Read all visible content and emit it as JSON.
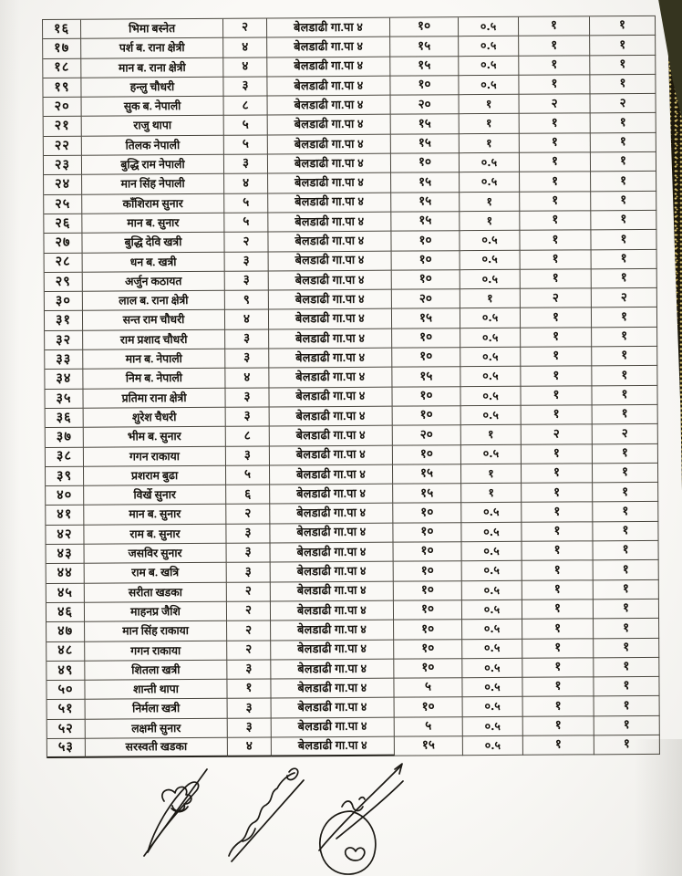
{
  "document": {
    "language": "Nepali (Devanagari)",
    "kind_hint": "scanned table page"
  },
  "table": {
    "rows": [
      [
        "१६",
        "भिमा बस्नेत",
        "२",
        "बेलडाढी गा.पा ४",
        "१०",
        "०.५",
        "१",
        "१"
      ],
      [
        "१७",
        "पर्श ब. राना क्षेत्री",
        "४",
        "बेलडाढी गा.पा ४",
        "१५",
        "०.५",
        "१",
        "१"
      ],
      [
        "१८",
        "मान ब. राना क्षेत्री",
        "४",
        "बेलडाढी गा.पा ४",
        "१५",
        "०.५",
        "१",
        "१"
      ],
      [
        "१९",
        "हन्लु चौधरी",
        "३",
        "बेलडाढी गा.पा ४",
        "१०",
        "०.५",
        "१",
        "१"
      ],
      [
        "२०",
        "सुक ब. नेपाली",
        "८",
        "बेलडाढी गा.पा ४",
        "२०",
        "१",
        "२",
        "२"
      ],
      [
        "२१",
        "राजु थापा",
        "५",
        "बेलडाढी गा.पा ४",
        "१५",
        "१",
        "१",
        "१"
      ],
      [
        "२२",
        "तिलक नेपाली",
        "५",
        "बेलडाढी गा.पा ४",
        "१५",
        "१",
        "१",
        "१"
      ],
      [
        "२३",
        "बुद्धि राम नेपाली",
        "३",
        "बेलडाढी गा.पा ४",
        "१०",
        "०.५",
        "१",
        "१"
      ],
      [
        "२४",
        "मान सिंह नेपाली",
        "४",
        "बेलडाढी गा.पा ४",
        "१५",
        "०.५",
        "१",
        "१"
      ],
      [
        "२५",
        "काँशिराम सुनार",
        "५",
        "बेलडाढी गा.पा ४",
        "१५",
        "१",
        "१",
        "१"
      ],
      [
        "२६",
        "मान ब. सुनार",
        "५",
        "बेलडाढी गा.पा ४",
        "१५",
        "१",
        "१",
        "१"
      ],
      [
        "२७",
        "बुद्धि देवि खत्री",
        "२",
        "बेलडाढी गा.पा ४",
        "१०",
        "०.५",
        "१",
        "१"
      ],
      [
        "२८",
        "धन ब. खत्री",
        "३",
        "बेलडाढी गा.पा ४",
        "१०",
        "०.५",
        "१",
        "१"
      ],
      [
        "२९",
        "अर्जुन कठायत",
        "३",
        "बेलडाढी गा.पा ४",
        "१०",
        "०.५",
        "१",
        "१"
      ],
      [
        "३०",
        "लाल ब. राना क्षेत्री",
        "९",
        "बेलडाढी गा.पा ४",
        "२०",
        "१",
        "२",
        "२"
      ],
      [
        "३१",
        "सन्त राम चौधरी",
        "४",
        "बेलडाढी गा.पा ४",
        "१५",
        "०.५",
        "१",
        "१"
      ],
      [
        "३२",
        "राम प्रशाद चौधरी",
        "३",
        "बेलडाढी गा.पा ४",
        "१०",
        "०.५",
        "१",
        "१"
      ],
      [
        "३३",
        "मान ब. नेपाली",
        "३",
        "बेलडाढी गा.पा ४",
        "१०",
        "०.५",
        "१",
        "१"
      ],
      [
        "३४",
        "निम ब. नेपाली",
        "४",
        "बेलडाढी गा.पा ४",
        "१५",
        "०.५",
        "१",
        "१"
      ],
      [
        "३५",
        "प्रतिमा राना क्षेत्री",
        "३",
        "बेलडाढी गा.पा ४",
        "१०",
        "०.५",
        "१",
        "१"
      ],
      [
        "३६",
        "शुरेश चैधरी",
        "३",
        "बेलडाढी गा.पा ४",
        "१०",
        "०.५",
        "१",
        "१"
      ],
      [
        "३७",
        "भीम ब. सुनार",
        "८",
        "बेलडाढी गा.पा ४",
        "२०",
        "१",
        "२",
        "२"
      ],
      [
        "३८",
        "गगन राकाया",
        "३",
        "बेलडाढी गा.पा ४",
        "१०",
        "०.५",
        "१",
        "१"
      ],
      [
        "३९",
        "प्रशराम बुढा",
        "५",
        "बेलडाढी गा.पा ४",
        "१५",
        "१",
        "१",
        "१"
      ],
      [
        "४०",
        "विर्खे सुनार",
        "६",
        "बेलडाढी गा.पा ४",
        "१५",
        "१",
        "१",
        "१"
      ],
      [
        "४१",
        "मान ब. सुनार",
        "२",
        "बेलडाढी गा.पा ४",
        "१०",
        "०.५",
        "१",
        "१"
      ],
      [
        "४२",
        "राम ब. सुनार",
        "३",
        "बेलडाढी गा.पा ४",
        "१०",
        "०.५",
        "१",
        "१"
      ],
      [
        "४३",
        "जसविर सुनार",
        "३",
        "बेलडाढी गा.पा ४",
        "१०",
        "०.५",
        "१",
        "१"
      ],
      [
        "४४",
        "राम ब. खत्रि",
        "३",
        "बेलडाढी गा.पा ४",
        "१०",
        "०.५",
        "१",
        "१"
      ],
      [
        "४५",
        "सरीता खडका",
        "२",
        "बेलडाढी गा.पा ४",
        "१०",
        "०.५",
        "१",
        "१"
      ],
      [
        "४६",
        "माहनप्र जैशि",
        "२",
        "बेलडाढी गा.पा ४",
        "१०",
        "०.५",
        "१",
        "१"
      ],
      [
        "४७",
        "मान सिंह राकाया",
        "२",
        "बेलडाढी गा.पा ४",
        "१०",
        "०.५",
        "१",
        "१"
      ],
      [
        "४८",
        "गगन राकाया",
        "२",
        "बेलडाढी गा.पा ४",
        "१०",
        "०.५",
        "१",
        "१"
      ],
      [
        "४९",
        "शितला खत्री",
        "३",
        "बेलडाढी गा.पा ४",
        "१०",
        "०.५",
        "१",
        "१"
      ],
      [
        "५०",
        "शान्ती थापा",
        "१",
        "बेलडाढी गा.पा ४",
        "५",
        "०.५",
        "१",
        "१"
      ],
      [
        "५१",
        "निर्मला खत्री",
        "३",
        "बेलडाढी गा.पा ४",
        "१०",
        "०.५",
        "१",
        "१"
      ],
      [
        "५२",
        "लक्षमी सुनार",
        "३",
        "बेलडाढी गा.पा ४",
        "५",
        "०.५",
        "१",
        "१"
      ],
      [
        "५३",
        "सरस्वती खडका",
        "४",
        "बेलडाढी गा.पा ४",
        "१५",
        "०.५",
        "१",
        "१"
      ]
    ]
  },
  "signatures": [
    "signature-left",
    "signature-middle",
    "signature-right"
  ],
  "colors": {
    "paper": "#faf9f6",
    "line": "#4a473f",
    "ink": "#16130e",
    "edge_dark": "#1d180b",
    "edge_speckle": "#d8c473"
  }
}
